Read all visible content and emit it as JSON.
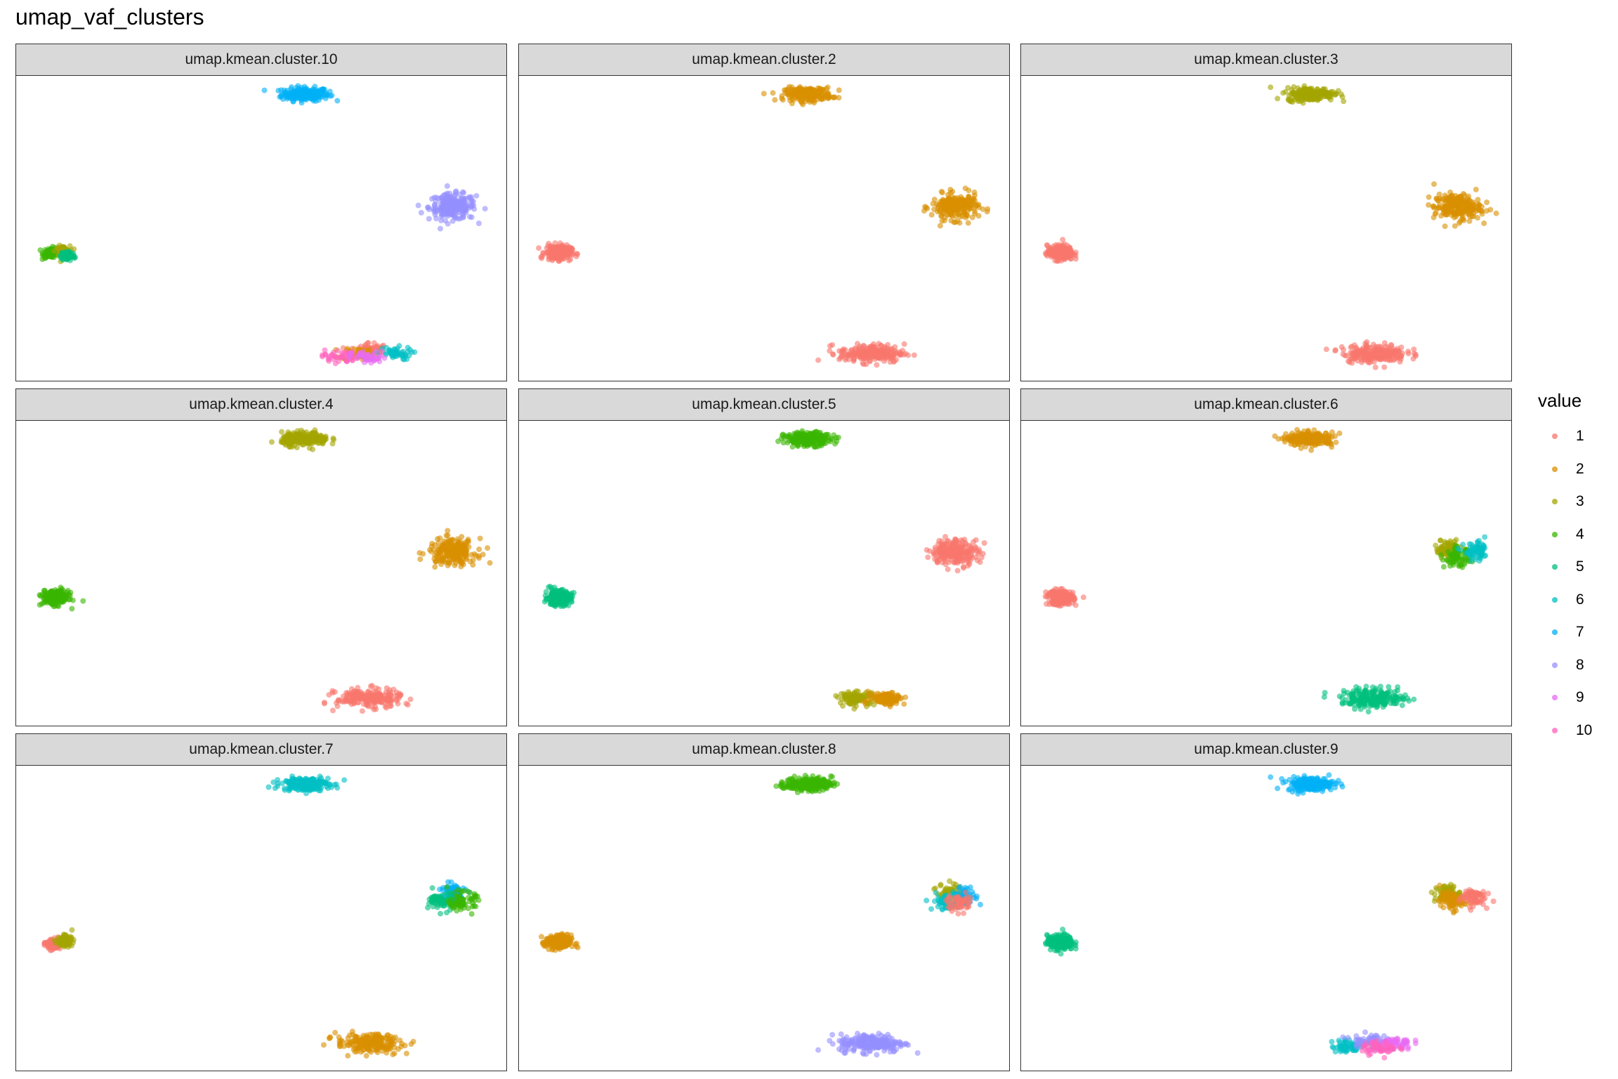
{
  "title": "umap_vaf_clusters",
  "legend": {
    "title": "value",
    "entries": [
      "1",
      "2",
      "3",
      "4",
      "5",
      "6",
      "7",
      "8",
      "9",
      "10"
    ]
  },
  "colors": {
    "1": "#F8766D",
    "2": "#D89000",
    "3": "#A3A500",
    "4": "#39B600",
    "5": "#00BF7D",
    "6": "#00BFC4",
    "7": "#00B0F6",
    "8": "#9590FF",
    "9": "#E76BF3",
    "10": "#FF62BC"
  },
  "chart_data": {
    "type": "scatter",
    "facet": "variable",
    "color_by": "value",
    "xlim": [
      0,
      100
    ],
    "ylim": [
      0,
      100
    ],
    "axes_shown": false,
    "grid": false,
    "legend_placement": "right",
    "groups": [
      {
        "name": "top",
        "x": 59,
        "y": 94,
        "sx": 4.0,
        "sy": 1.8
      },
      {
        "name": "right",
        "x": 89,
        "y": 57,
        "sx": 4.0,
        "sy": 3.5
      },
      {
        "name": "left",
        "x": 8,
        "y": 42,
        "sx": 2.2,
        "sy": 2.0
      },
      {
        "name": "bottom",
        "x": 72,
        "y": 9,
        "sx": 5.5,
        "sy": 2.5
      }
    ],
    "panels": [
      {
        "label": "umap.kmean.cluster.10",
        "clusters": {
          "top": [
            [
              7,
              0,
              0
            ]
          ],
          "right": [
            [
              8,
              0,
              0
            ]
          ],
          "left": [
            [
              4,
              -1,
              0
            ],
            [
              3,
              1.5,
              0.5
            ],
            [
              5,
              2.5,
              -1
            ]
          ],
          "bottom": [
            [
              1,
              0,
              1.5
            ],
            [
              2,
              -2,
              0
            ],
            [
              6,
              5,
              0
            ],
            [
              10,
              -6,
              -1
            ],
            [
              9,
              0,
              -1.5
            ]
          ]
        }
      },
      {
        "label": "umap.kmean.cluster.2",
        "clusters": {
          "top": [
            [
              2,
              0,
              0
            ]
          ],
          "right": [
            [
              2,
              0,
              0
            ]
          ],
          "left": [
            [
              1,
              0,
              0
            ]
          ],
          "bottom": [
            [
              1,
              0,
              0
            ]
          ]
        }
      },
      {
        "label": "umap.kmean.cluster.3",
        "clusters": {
          "top": [
            [
              3,
              0,
              0
            ]
          ],
          "right": [
            [
              2,
              0,
              0
            ]
          ],
          "left": [
            [
              1,
              0,
              0
            ]
          ],
          "bottom": [
            [
              1,
              0,
              0
            ]
          ]
        }
      },
      {
        "label": "umap.kmean.cluster.4",
        "clusters": {
          "top": [
            [
              3,
              0,
              0
            ]
          ],
          "right": [
            [
              2,
              0,
              0
            ]
          ],
          "left": [
            [
              4,
              0,
              0
            ]
          ],
          "bottom": [
            [
              1,
              0,
              0
            ]
          ]
        }
      },
      {
        "label": "umap.kmean.cluster.5",
        "clusters": {
          "top": [
            [
              4,
              0,
              0
            ]
          ],
          "right": [
            [
              1,
              0,
              0
            ]
          ],
          "left": [
            [
              5,
              0,
              0
            ]
          ],
          "bottom": [
            [
              3,
              -3,
              0
            ],
            [
              2,
              3,
              0
            ]
          ]
        }
      },
      {
        "label": "umap.kmean.cluster.6",
        "clusters": {
          "top": [
            [
              2,
              0,
              0
            ]
          ],
          "right": [
            [
              3,
              -2,
              1
            ],
            [
              4,
              0,
              -2
            ],
            [
              6,
              4,
              0
            ]
          ],
          "left": [
            [
              1,
              0,
              0
            ]
          ],
          "bottom": [
            [
              5,
              0,
              0
            ]
          ]
        }
      },
      {
        "label": "umap.kmean.cluster.7",
        "clusters": {
          "top": [
            [
              6,
              0,
              0
            ]
          ],
          "right": [
            [
              7,
              0,
              1.5
            ],
            [
              5,
              -2,
              -1.5
            ],
            [
              4,
              2,
              -1.5
            ]
          ],
          "left": [
            [
              1,
              -0.5,
              -0.5
            ],
            [
              3,
              2,
              0.5
            ]
          ],
          "bottom": [
            [
              2,
              0,
              0
            ]
          ]
        }
      },
      {
        "label": "umap.kmean.cluster.8",
        "clusters": {
          "top": [
            [
              4,
              0,
              0
            ]
          ],
          "right": [
            [
              3,
              -1,
              1.5
            ],
            [
              7,
              2,
              0
            ],
            [
              6,
              -2,
              -1.5
            ],
            [
              1,
              1,
              -2
            ]
          ],
          "left": [
            [
              2,
              0,
              0
            ]
          ],
          "bottom": [
            [
              8,
              0,
              0
            ]
          ]
        }
      },
      {
        "label": "umap.kmean.cluster.9",
        "clusters": {
          "top": [
            [
              7,
              0,
              0
            ]
          ],
          "right": [
            [
              3,
              -2,
              1
            ],
            [
              2,
              -1,
              -1.5
            ],
            [
              1,
              3,
              0
            ]
          ],
          "left": [
            [
              5,
              0,
              0
            ]
          ],
          "bottom": [
            [
              6,
              -5,
              -1
            ],
            [
              8,
              -1,
              1
            ],
            [
              9,
              4,
              0
            ],
            [
              10,
              1,
              -1.5
            ]
          ]
        }
      }
    ]
  }
}
